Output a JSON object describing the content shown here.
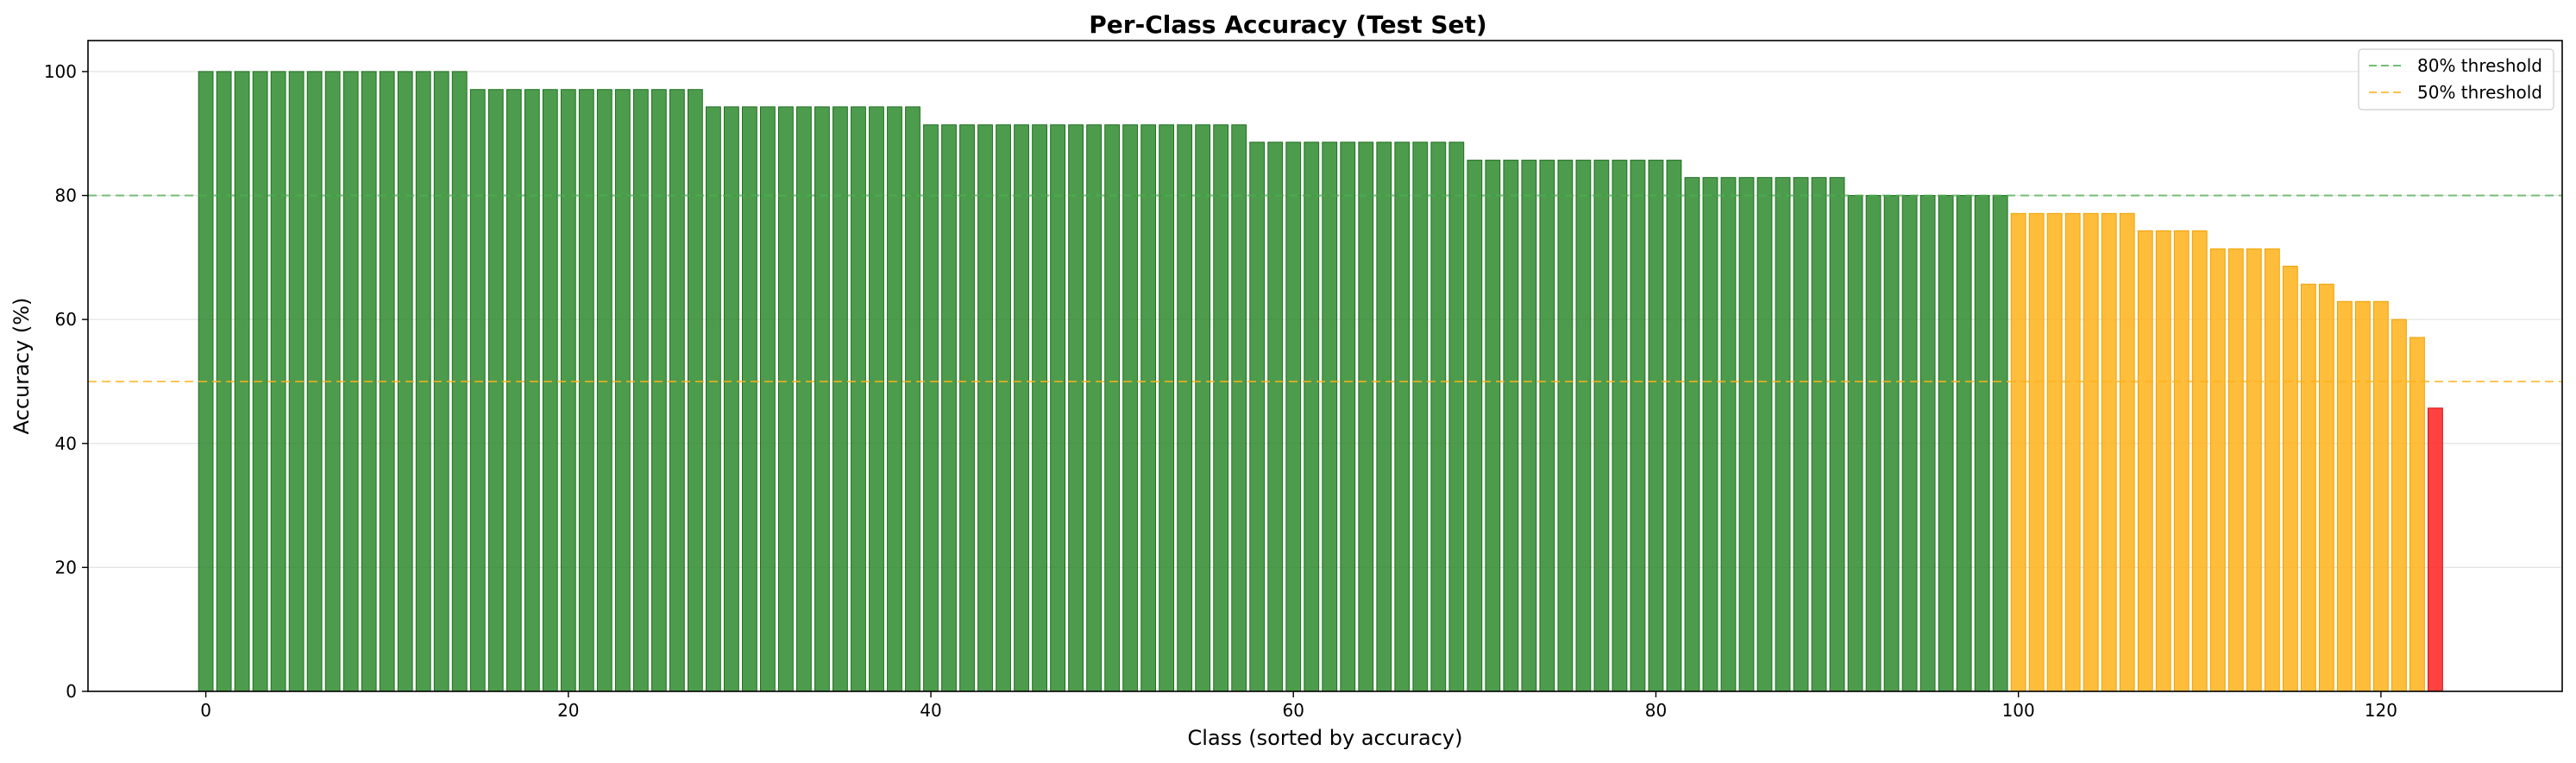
{
  "chart_data": {
    "type": "bar",
    "title": "Per-Class Accuracy (Test Set)",
    "xlabel": "Class (sorted by accuracy)",
    "ylabel": "Accuracy (%)",
    "xlim": [
      -6.5,
      130
    ],
    "ylim": [
      0,
      105
    ],
    "xticks": [
      0,
      20,
      40,
      60,
      80,
      100,
      120
    ],
    "yticks": [
      0,
      20,
      40,
      60,
      80,
      100
    ],
    "grid": "y",
    "legend_position": "top-right",
    "colors": {
      "high": "#2e8b2e",
      "mid": "#ffb11a",
      "low": "#ff2020"
    },
    "thresholds": [
      {
        "label": "80% threshold",
        "value": 80,
        "color": "#4caf50"
      },
      {
        "label": "50% threshold",
        "value": 50,
        "color": "#ffb11a"
      }
    ],
    "groups": [
      {
        "value": 100.0,
        "count": 15
      },
      {
        "value": 97.1,
        "count": 13
      },
      {
        "value": 94.3,
        "count": 12
      },
      {
        "value": 91.4,
        "count": 18
      },
      {
        "value": 88.6,
        "count": 12
      },
      {
        "value": 85.7,
        "count": 12
      },
      {
        "value": 82.9,
        "count": 9
      },
      {
        "value": 80.0,
        "count": 9
      },
      {
        "value": 77.1,
        "count": 7
      },
      {
        "value": 74.3,
        "count": 4
      },
      {
        "value": 71.4,
        "count": 4
      },
      {
        "value": 68.6,
        "count": 1
      },
      {
        "value": 65.7,
        "count": 2
      },
      {
        "value": 62.9,
        "count": 3
      },
      {
        "value": 60.0,
        "count": 1
      },
      {
        "value": 57.1,
        "count": 1
      },
      {
        "value": 45.7,
        "count": 1
      }
    ]
  }
}
